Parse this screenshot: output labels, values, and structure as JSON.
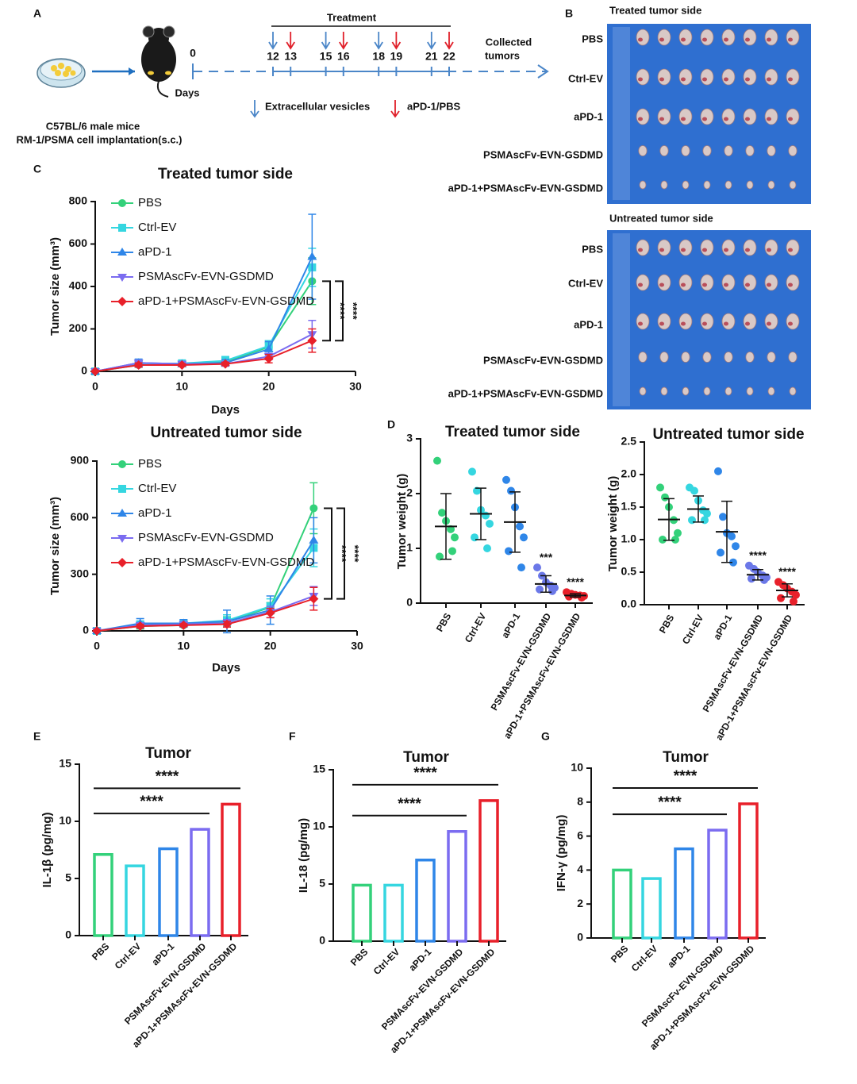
{
  "panel_labels": [
    "A",
    "B",
    "C",
    "D",
    "E",
    "F",
    "G"
  ],
  "panel_a": {
    "mouse_strain": "C57BL/6  male mice",
    "implantation": "RM-1/PSMA cell implantation(s.c.)",
    "treatment": "Treatment",
    "start_day": 0,
    "days_label": "Days",
    "ev_days": [
      12,
      15,
      18,
      21
    ],
    "treatment_days": [
      13,
      16,
      19,
      22
    ],
    "collected": [
      "Collected",
      "tumors"
    ],
    "ev_legend": "Extracellular vesicles",
    "treatment_legend": "aPD-1/PBS"
  },
  "panel_b": {
    "titles": [
      "Treated tumor side",
      "Untreated tumor side"
    ],
    "rows": [
      "PBS",
      "Ctrl-EV",
      "aPD-1",
      "PSMAscFv-EVN-GSDMD",
      "aPD-1+PSMAscFv-EVN-GSDMD"
    ]
  },
  "chart_data": [
    {
      "type": "line",
      "title": "Treated tumor side",
      "xlabel": "Days",
      "ylabel": "Tumor size (mm³)",
      "x": [
        0,
        5,
        10,
        15,
        20,
        25
      ],
      "xlim": [
        0,
        30
      ],
      "xticks": [
        0,
        10,
        20,
        30
      ],
      "ylim": [
        0,
        800
      ],
      "yticks": [
        0,
        200,
        400,
        600,
        800
      ],
      "series": [
        {
          "name": "PBS",
          "color": "#33d17a",
          "marker": "circle",
          "values": [
            0,
            30,
            35,
            45,
            115,
            425
          ],
          "errors": [
            0,
            10,
            8,
            15,
            20,
            110
          ]
        },
        {
          "name": "Ctrl-EV",
          "color": "#35d6e0",
          "marker": "square",
          "values": [
            0,
            35,
            38,
            50,
            120,
            490
          ],
          "errors": [
            0,
            12,
            8,
            20,
            25,
            90
          ]
        },
        {
          "name": "aPD-1",
          "color": "#2f86e8",
          "marker": "triangle-up",
          "values": [
            0,
            40,
            35,
            40,
            105,
            540
          ],
          "errors": [
            0,
            18,
            10,
            15,
            35,
            200
          ]
        },
        {
          "name": "PSMAscFv-EVN-GSDMD",
          "color": "#7b6cf0",
          "marker": "triangle-down",
          "values": [
            0,
            40,
            35,
            35,
            70,
            175
          ],
          "errors": [
            0,
            8,
            8,
            10,
            15,
            65
          ]
        },
        {
          "name": "aPD-1+PSMAscFv-EVN-GSDMD",
          "color": "#e8202a",
          "marker": "diamond",
          "values": [
            0,
            30,
            30,
            35,
            60,
            145
          ],
          "errors": [
            0,
            10,
            6,
            8,
            20,
            55
          ]
        }
      ],
      "annotations": [
        "****",
        "****"
      ]
    },
    {
      "type": "line",
      "title": "Untreated tumor side",
      "xlabel": "Days",
      "ylabel": "Tumor size (mm³)",
      "x": [
        0,
        5,
        10,
        15,
        20,
        25
      ],
      "xlim": [
        0,
        30
      ],
      "xticks": [
        0,
        10,
        20,
        30
      ],
      "ylim": [
        0,
        900
      ],
      "yticks": [
        0,
        300,
        600,
        900
      ],
      "series": [
        {
          "name": "PBS",
          "color": "#33d17a",
          "marker": "circle",
          "values": [
            0,
            25,
            30,
            50,
            125,
            650
          ],
          "errors": [
            0,
            15,
            10,
            25,
            25,
            135
          ]
        },
        {
          "name": "Ctrl-EV",
          "color": "#35d6e0",
          "marker": "square",
          "values": [
            0,
            35,
            40,
            55,
            130,
            440
          ],
          "errors": [
            0,
            15,
            12,
            30,
            40,
            100
          ]
        },
        {
          "name": "aPD-1",
          "color": "#2f86e8",
          "marker": "triangle-up",
          "values": [
            0,
            40,
            40,
            50,
            110,
            480
          ],
          "errors": [
            0,
            25,
            20,
            60,
            75,
            120
          ]
        },
        {
          "name": "PSMAscFv-EVN-GSDMD",
          "color": "#7b6cf0",
          "marker": "triangle-down",
          "values": [
            0,
            30,
            35,
            40,
            100,
            185
          ],
          "errors": [
            0,
            10,
            10,
            20,
            30,
            50
          ]
        },
        {
          "name": "aPD-1+PSMAscFv-EVN-GSDMD",
          "color": "#e8202a",
          "marker": "diamond",
          "values": [
            0,
            25,
            30,
            35,
            95,
            170
          ],
          "errors": [
            0,
            10,
            8,
            15,
            25,
            60
          ]
        }
      ],
      "annotations": [
        "****",
        "****"
      ]
    },
    {
      "type": "dot",
      "title": "Treated tumor side",
      "ylabel": "Tumor weight (g)",
      "categories": [
        "PBS",
        "Ctrl-EV",
        "aPD-1",
        "PSMAscFv-EVN-GSDMD",
        "aPD-1+PSMAscFv-EVN-GSDMD"
      ],
      "colors": [
        "#33d17a",
        "#35d6e0",
        "#2f86e8",
        "#6b78e8",
        "#e8202a"
      ],
      "points": [
        [
          2.6,
          1.65,
          1.5,
          1.35,
          1.2,
          0.85,
          0.95
        ],
        [
          2.4,
          2.05,
          1.7,
          1.6,
          1.45,
          1.2,
          1.0
        ],
        [
          2.25,
          2.05,
          1.75,
          1.4,
          1.2,
          0.95,
          0.65
        ],
        [
          0.65,
          0.5,
          0.38,
          0.32,
          0.28,
          0.25,
          0.22
        ],
        [
          0.2,
          0.17,
          0.15,
          0.14,
          0.13,
          0.12,
          0.1
        ]
      ],
      "means": [
        1.4,
        1.63,
        1.48,
        0.35,
        0.14
      ],
      "sd": [
        0.6,
        0.47,
        0.55,
        0.15,
        0.03
      ],
      "ylim": [
        0,
        3
      ],
      "yticks": [
        0,
        1,
        2,
        3
      ],
      "annotations": [
        null,
        null,
        null,
        "***",
        "****"
      ]
    },
    {
      "type": "dot",
      "title": "Untreated tumor side",
      "ylabel": "Tumor weight (g)",
      "categories": [
        "PBS",
        "Ctrl-EV",
        "aPD-1",
        "PSMAscFv-EVN-GSDMD",
        "aPD-1+PSMAscFv-EVN-GSDMD"
      ],
      "colors": [
        "#33d17a",
        "#35d6e0",
        "#2f86e8",
        "#6b78e8",
        "#e8202a"
      ],
      "points": [
        [
          1.8,
          1.65,
          1.5,
          1.3,
          1.1,
          1.0,
          1.0
        ],
        [
          1.8,
          1.75,
          1.6,
          1.45,
          1.4,
          1.3,
          1.3
        ],
        [
          2.05,
          1.35,
          1.1,
          1.05,
          0.9,
          0.8,
          0.65
        ],
        [
          0.6,
          0.55,
          0.5,
          0.45,
          0.42,
          0.4,
          0.38
        ],
        [
          0.35,
          0.3,
          0.25,
          0.2,
          0.15,
          0.1,
          0.05
        ]
      ],
      "means": [
        1.31,
        1.47,
        1.12,
        0.46,
        0.22
      ],
      "sd": [
        0.32,
        0.2,
        0.47,
        0.08,
        0.1
      ],
      "ylim": [
        0,
        2.5
      ],
      "yticks": [
        {
          "value": 0,
          "label": "0.0"
        },
        0.5,
        {
          "value": 1,
          "label": "1.0"
        },
        1.5,
        {
          "value": 2,
          "label": "2.0"
        },
        2.5
      ],
      "annotations": [
        null,
        null,
        null,
        "****",
        "****"
      ]
    },
    {
      "type": "bar",
      "title": "Tumor",
      "ylabel": "IL-1β (pg/mg)",
      "categories": [
        "PBS",
        "Ctrl-EV",
        "aPD-1",
        "PSMAscFv-EVN-GSDMD",
        "aPD-1+PSMAscFv-EVN-GSDMD"
      ],
      "colors": [
        "#33d17a",
        "#35d6e0",
        "#2f86e8",
        "#7b6cf0",
        "#e8202a"
      ],
      "values": [
        7.1,
        6.1,
        7.6,
        9.3,
        11.5
      ],
      "ylim": [
        0,
        15
      ],
      "yticks": [
        0,
        5,
        10,
        15
      ],
      "annotations": [
        "****",
        "****"
      ]
    },
    {
      "type": "bar",
      "title": "Tumor",
      "ylabel": "IL-18 (pg/mg)",
      "categories": [
        "PBS",
        "Ctrl-EV",
        "aPD-1",
        "PSMAscFv-EVN-GSDMD",
        "aPD-1+PSMAscFv-EVN-GSDMD"
      ],
      "colors": [
        "#33d17a",
        "#35d6e0",
        "#2f86e8",
        "#7b6cf0",
        "#e8202a"
      ],
      "values": [
        4.9,
        4.9,
        7.1,
        9.6,
        12.3
      ],
      "ylim": [
        0,
        15
      ],
      "yticks": [
        0,
        5,
        10,
        15
      ],
      "annotations": [
        "****",
        "****"
      ]
    },
    {
      "type": "bar",
      "title": "Tumor",
      "ylabel": "IFN-γ (pg/mg)",
      "categories": [
        "PBS",
        "Ctrl-EV",
        "aPD-1",
        "PSMAscFv-EVN-GSDMD",
        "aPD-1+PSMAscFv-EVN-GSDMD"
      ],
      "colors": [
        "#33d17a",
        "#35d6e0",
        "#2f86e8",
        "#7b6cf0",
        "#e8202a"
      ],
      "values": [
        4.0,
        3.5,
        5.25,
        6.35,
        7.9
      ],
      "ylim": [
        0,
        10
      ],
      "yticks": [
        0,
        2,
        4,
        6,
        8,
        10
      ],
      "annotations": [
        "****",
        "****"
      ]
    }
  ]
}
